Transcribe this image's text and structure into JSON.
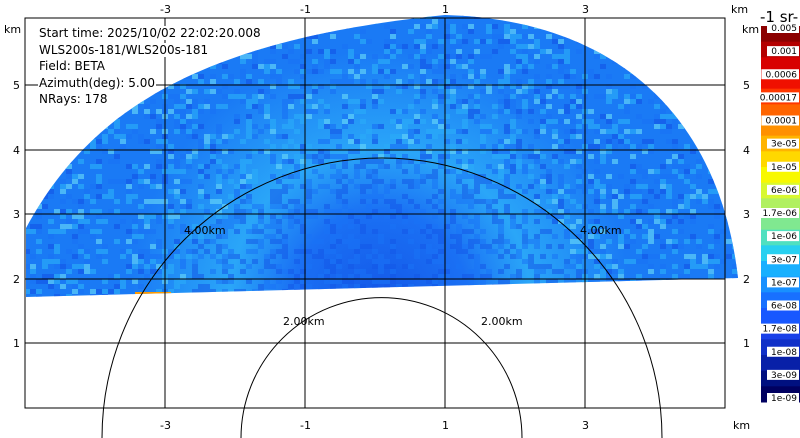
{
  "info": {
    "start_time": "Start time: 2025/10/02 22:02:20.008",
    "station": "WLS200s-181/WLS200s-181",
    "field": "Field: BETA",
    "azimuth": "Azimuth(deg): 5.00",
    "nrays": "NRays: 178"
  },
  "axes": {
    "x_ticks": [
      "-3",
      "-1",
      "1",
      "3"
    ],
    "y_ticks": [
      "1",
      "2",
      "3",
      "4",
      "5"
    ],
    "unit": "km"
  },
  "rings": {
    "inner_label": "2.00km",
    "outer_label": "4.00km"
  },
  "colorbar": {
    "title": "-1 sr-",
    "labels": [
      "0.005",
      "0.001",
      "0.0006",
      "0.00017",
      "0.0001",
      "3e-05",
      "1e-05",
      "6e-06",
      "1.7e-06",
      "1e-06",
      "3e-07",
      "1e-07",
      "6e-08",
      "1.7e-08",
      "1e-08",
      "3e-09",
      "1e-09"
    ],
    "colors": [
      "#8c0000",
      "#b40000",
      "#d80000",
      "#f01000",
      "#ff3800",
      "#ff6400",
      "#ff9000",
      "#ffb400",
      "#ffd800",
      "#f8f800",
      "#d8f830",
      "#b0f060",
      "#80e890",
      "#50e0c0",
      "#28d0f0",
      "#18b0ff",
      "#1890ff",
      "#1870ff",
      "#1858ff",
      "#1840e8",
      "#1030c8",
      "#0820a8",
      "#001080",
      "#000060"
    ]
  },
  "palette": {
    "field_main": "#1a73f5",
    "field_light": "#2aaaf8",
    "field_pale": "#5fd0f8",
    "field_deep": "#1458e8",
    "speck": "#ff9a00"
  }
}
